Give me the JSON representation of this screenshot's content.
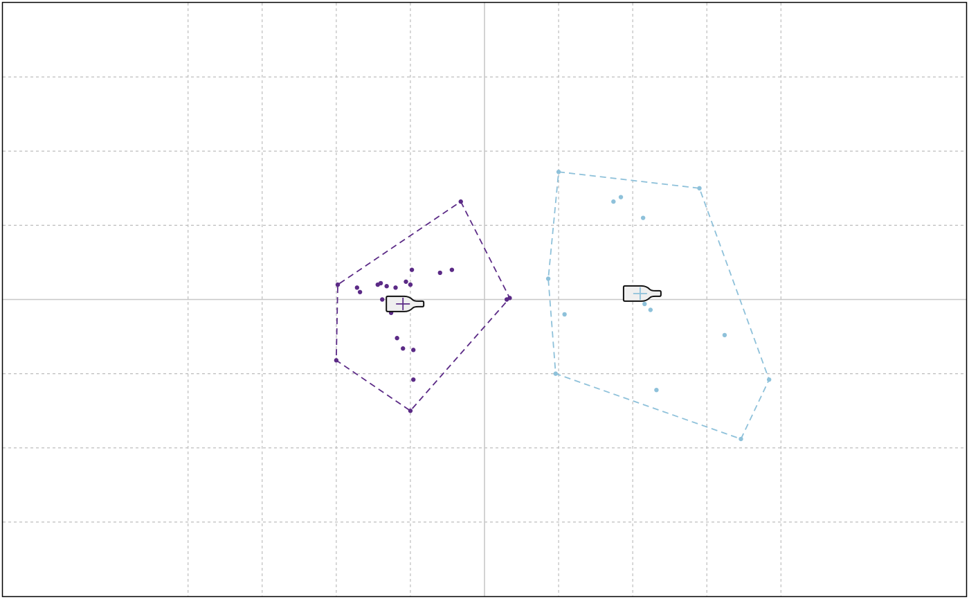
{
  "chart_data": {
    "type": "scatter",
    "title": "",
    "xlabel": "",
    "ylabel": "",
    "xlim": [
      -3.25,
      3.25
    ],
    "ylim": [
      -2,
      2
    ],
    "grid": true,
    "grid_x": [
      -2,
      -1.5,
      -1,
      -0.5,
      0,
      0.5,
      1,
      1.5,
      2
    ],
    "grid_y": [
      -1.5,
      -1,
      -0.5,
      0,
      0.5,
      1,
      1.5
    ],
    "zero_lines": true,
    "hull_style": "dashed",
    "centroid_marker": "bottle-icon",
    "groups": [
      {
        "color": "#5b2a86",
        "centroid": [
          -0.55,
          -0.03
        ],
        "points": [
          [
            -0.99,
            0.1
          ],
          [
            -0.86,
            0.08
          ],
          [
            -0.84,
            0.05
          ],
          [
            -0.72,
            0.1
          ],
          [
            -0.7,
            0.11
          ],
          [
            -0.69,
            0.0
          ],
          [
            -0.66,
            0.09
          ],
          [
            -0.64,
            0.0
          ],
          [
            -0.63,
            -0.09
          ],
          [
            -0.6,
            0.08
          ],
          [
            -0.59,
            -0.26
          ],
          [
            -0.55,
            -0.33
          ],
          [
            -0.53,
            0.12
          ],
          [
            -0.5,
            0.1
          ],
          [
            -0.49,
            -0.01
          ],
          [
            -0.49,
            0.2
          ],
          [
            -0.48,
            -0.34
          ],
          [
            -0.48,
            -0.54
          ],
          [
            -0.3,
            0.18
          ],
          [
            -0.22,
            0.2
          ],
          [
            -0.16,
            0.66
          ],
          [
            0.15,
            0.0
          ],
          [
            0.17,
            0.01
          ],
          [
            -1.0,
            -0.41
          ],
          [
            -0.5,
            -0.75
          ]
        ],
        "hull": [
          [
            -0.16,
            0.66
          ],
          [
            0.17,
            0.01
          ],
          [
            -0.5,
            -0.75
          ],
          [
            -1.0,
            -0.41
          ],
          [
            -0.99,
            0.1
          ]
        ]
      },
      {
        "color": "#8ec1da",
        "centroid": [
          1.05,
          0.04
        ],
        "points": [
          [
            0.5,
            0.86
          ],
          [
            0.87,
            0.66
          ],
          [
            0.92,
            0.69
          ],
          [
            1.07,
            0.55
          ],
          [
            0.43,
            0.14
          ],
          [
            1.08,
            -0.03
          ],
          [
            1.12,
            -0.07
          ],
          [
            0.54,
            -0.1
          ],
          [
            1.62,
            -0.24
          ],
          [
            1.16,
            -0.61
          ],
          [
            1.45,
            0.75
          ],
          [
            1.92,
            -0.54
          ],
          [
            0.48,
            -0.5
          ],
          [
            1.73,
            -0.94
          ]
        ],
        "hull": [
          [
            0.5,
            0.86
          ],
          [
            1.45,
            0.75
          ],
          [
            1.92,
            -0.54
          ],
          [
            1.73,
            -0.94
          ],
          [
            0.48,
            -0.5
          ],
          [
            0.43,
            0.14
          ]
        ]
      }
    ]
  }
}
